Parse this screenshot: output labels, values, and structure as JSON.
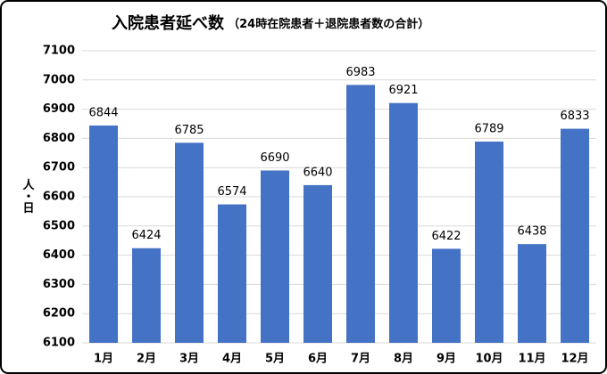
{
  "chart_data": {
    "type": "bar",
    "title": "入院患者延べ数",
    "subtitle": "（24時在院患者＋退院患者数の合計）",
    "y_label": "人・日",
    "categories": [
      "1月",
      "2月",
      "3月",
      "4月",
      "5月",
      "6月",
      "7月",
      "8月",
      "9月",
      "10月",
      "11月",
      "12月"
    ],
    "values": [
      6844,
      6424,
      6785,
      6574,
      6690,
      6640,
      6983,
      6921,
      6422,
      6789,
      6438,
      6833
    ],
    "color": "#4472c4",
    "ylim": [
      6100,
      7100
    ],
    "yticks": [
      6100,
      6200,
      6300,
      6400,
      6500,
      6600,
      6700,
      6800,
      6900,
      7000,
      7100
    ],
    "grid": true
  }
}
